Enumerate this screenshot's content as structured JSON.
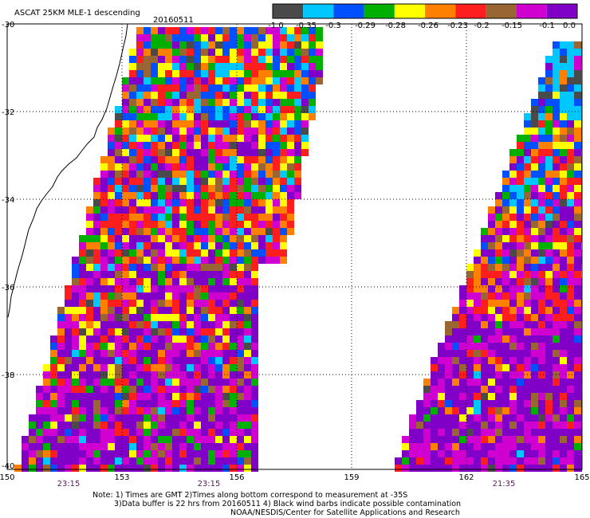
{
  "header": {
    "title": "ASCAT 25KM MLE-1 descending",
    "date": "20160511"
  },
  "colorbar": {
    "segment_colors": [
      "#4a4a4a",
      "#00c8ff",
      "#0050ff",
      "#00b000",
      "#ffff00",
      "#ff8000",
      "#ff1e1e",
      "#996633",
      "#d000d0",
      "#8000c8"
    ],
    "tick_labels": [
      "-1.0",
      "-0.35",
      "-0.3",
      "-0.29",
      "-0.28",
      "-0.26",
      "-0.23",
      "-0.2",
      "-0.15",
      "-0.1",
      "0.0"
    ]
  },
  "axes": {
    "lat_labels": [
      "-30",
      "-32",
      "-34",
      "-36",
      "-38",
      "-40"
    ],
    "lon_labels": [
      "150",
      "153",
      "156",
      "159",
      "162",
      "165"
    ],
    "time_labels": [
      "23:15",
      "23:15",
      "21:35"
    ]
  },
  "notes": [
    "Note: 1) Times are GMT 2)Times along bottom correspond to measurement at -35S",
    "3)Data buffer is 22 hrs from 20160511 4) Black wind barbs indicate possible contamination",
    "NOAA/NESDIS/Center for Satellite Applications and Research"
  ]
}
